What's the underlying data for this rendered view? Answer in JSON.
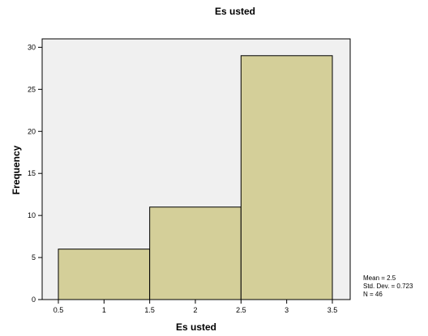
{
  "chart_data": {
    "type": "bar",
    "title": "Es usted",
    "xlabel": "Es usted",
    "ylabel": "Frequency",
    "bins": [
      {
        "from": 0.5,
        "to": 1.5,
        "count": 6
      },
      {
        "from": 1.5,
        "to": 2.5,
        "count": 11
      },
      {
        "from": 2.5,
        "to": 3.5,
        "count": 29
      }
    ],
    "xlim": [
      0.5,
      3.5
    ],
    "ylim": [
      0,
      31
    ],
    "x_ticks": [
      "0.5",
      "1",
      "1.5",
      "2",
      "2.5",
      "3",
      "3.5"
    ],
    "y_ticks": [
      "0",
      "5",
      "10",
      "15",
      "20",
      "25",
      "30"
    ],
    "grid": false,
    "stats": {
      "mean": "Mean = 2.5",
      "std_dev": "Std. Dev. = 0.723",
      "n": "N = 46"
    },
    "colors": {
      "bar_fill": "#d4cf99",
      "bar_stroke": "#000000",
      "plot_background": "#f0f0f0"
    }
  }
}
